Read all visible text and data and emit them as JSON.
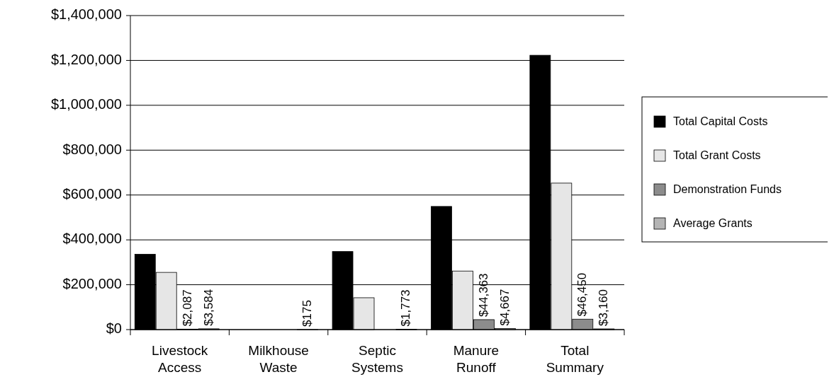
{
  "chart_data": {
    "type": "bar",
    "categories": [
      "Livestock Access",
      "Milkhouse Waste",
      "Septic Systems",
      "Manure Runoff",
      "Total Summary"
    ],
    "series": [
      {
        "name": "Total Capital Costs",
        "color": "#000000",
        "values": [
          336000,
          null,
          348000,
          549000,
          1223000
        ]
      },
      {
        "name": "Total Grant Costs",
        "color": "#e6e6e6",
        "values": [
          255000,
          null,
          142000,
          261000,
          653000
        ]
      },
      {
        "name": "Demonstration Funds",
        "color": "#8c8c8c",
        "values": [
          2087,
          null,
          null,
          44363,
          46450
        ],
        "value_labels": [
          "$2,087",
          null,
          null,
          "$44,363",
          "$46,450"
        ]
      },
      {
        "name": "Average Grants",
        "color": "#b4b4b4",
        "values": [
          3584,
          175,
          1773,
          4667,
          3160
        ],
        "value_labels": [
          "$3,584",
          "$175",
          "$1,773",
          "$4,667",
          "$3,160"
        ]
      }
    ],
    "ylim": [
      0,
      1400000
    ],
    "yticks": [
      {
        "value": 0,
        "label": "$0"
      },
      {
        "value": 200000,
        "label": "$200,000"
      },
      {
        "value": 400000,
        "label": "$400,000"
      },
      {
        "value": 600000,
        "label": "$600,000"
      },
      {
        "value": 800000,
        "label": "$800,000"
      },
      {
        "value": 1000000,
        "label": "$1,000,000"
      },
      {
        "value": 1200000,
        "label": "$1,200,000"
      },
      {
        "value": 1400000,
        "label": "$1,400,000"
      }
    ],
    "grid": "y",
    "legend": "right"
  }
}
